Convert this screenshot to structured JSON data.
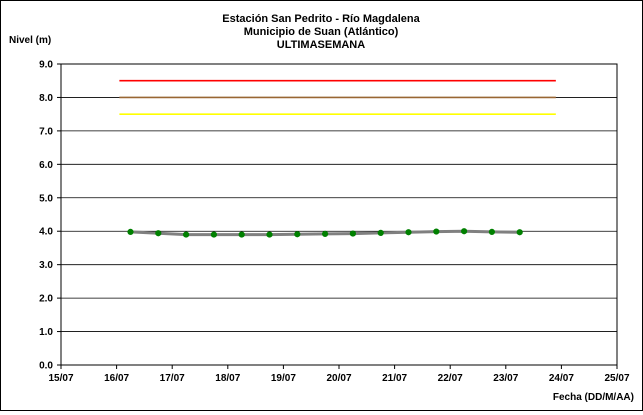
{
  "chart_data": {
    "type": "line",
    "title_lines": [
      "Estación San Pedrito - Río Magdalena",
      "Municipio de Suan (Atlántico)",
      "ULTIMASEMANA"
    ],
    "ylabel": "Nivel (m)",
    "xlabel": "Fecha (DD/M/AA)",
    "ylim": [
      0,
      9
    ],
    "xlim": [
      15,
      25
    ],
    "y_ticks": [
      "0.0",
      "1.0",
      "2.0",
      "3.0",
      "4.0",
      "5.0",
      "6.0",
      "7.0",
      "8.0",
      "9.0"
    ],
    "x_ticks": [
      "15/07",
      "16/07",
      "17/07",
      "18/07",
      "19/07",
      "20/07",
      "21/07",
      "22/07",
      "23/07",
      "24/07",
      "25/07"
    ],
    "grid": "horizontal",
    "legend": "none",
    "series": [
      {
        "type": "line-markers",
        "color": "#808080",
        "marker_color": "#008000",
        "x": [
          16.25,
          16.75,
          17.25,
          17.75,
          18.25,
          18.75,
          19.25,
          19.75,
          20.25,
          20.75,
          21.25,
          21.75,
          22.25,
          22.75,
          23.25
        ],
        "y": [
          3.98,
          3.94,
          3.9,
          3.9,
          3.9,
          3.9,
          3.91,
          3.92,
          3.93,
          3.95,
          3.97,
          3.99,
          4.0,
          3.98,
          3.97
        ]
      },
      {
        "type": "threshold",
        "color": "#ff0000",
        "x": [
          16.05,
          23.9
        ],
        "y": [
          8.5,
          8.5
        ]
      },
      {
        "type": "threshold",
        "color": "#996633",
        "x": [
          16.05,
          23.9
        ],
        "y": [
          8.0,
          8.0
        ]
      },
      {
        "type": "threshold",
        "color": "#ffff00",
        "x": [
          16.05,
          23.9
        ],
        "y": [
          7.5,
          7.5
        ]
      }
    ]
  }
}
